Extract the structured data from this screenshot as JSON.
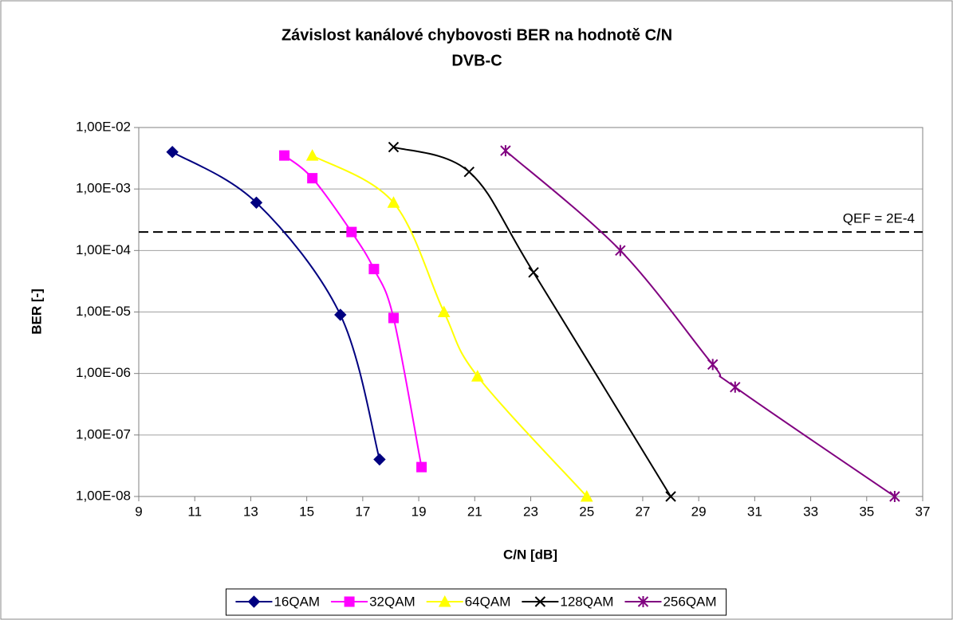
{
  "chart_data": {
    "type": "line",
    "title": "Závislost kanálové chybovosti BER na hodnotě C/N",
    "subtitle": "DVB-C",
    "x_label": "C/N [dB]",
    "y_label": "BER [-]",
    "xlim": [
      9,
      37
    ],
    "xticks": [
      9,
      11,
      13,
      15,
      17,
      19,
      21,
      23,
      25,
      27,
      29,
      31,
      33,
      35,
      37
    ],
    "ylim": [
      1e-08,
      0.01
    ],
    "yticks": [
      {
        "value": 1e-08,
        "label": "1,00E-08"
      },
      {
        "value": 1e-07,
        "label": "1,00E-07"
      },
      {
        "value": 1e-06,
        "label": "1,00E-06"
      },
      {
        "value": 1e-05,
        "label": "1,00E-05"
      },
      {
        "value": 0.0001,
        "label": "1,00E-04"
      },
      {
        "value": 0.001,
        "label": "1,00E-03"
      },
      {
        "value": 0.01,
        "label": "1,00E-02"
      }
    ],
    "log_y": true,
    "grid": true,
    "legend": "bottom",
    "reference_line": {
      "value": 0.0002,
      "label": "QEF = 2E-4"
    },
    "series": [
      {
        "name": "16QAM",
        "color": "#000080",
        "marker": "diamond",
        "x": [
          10.2,
          13.2,
          16.2,
          17.6
        ],
        "values": [
          0.004,
          0.0006,
          9e-06,
          4e-08
        ]
      },
      {
        "name": "32QAM",
        "color": "#ff00ff",
        "marker": "square",
        "x": [
          14.2,
          15.2,
          16.6,
          17.4,
          18.1,
          19.1
        ],
        "values": [
          0.0035,
          0.0015,
          0.0002,
          5e-05,
          8e-06,
          3e-08
        ]
      },
      {
        "name": "64QAM",
        "color": "#ffff00",
        "marker": "triangle",
        "x": [
          15.2,
          18.1,
          19.9,
          21.1,
          25
        ],
        "values": [
          0.0035,
          0.0006,
          1e-05,
          9e-07,
          1e-08
        ]
      },
      {
        "name": "128QAM",
        "color": "#000000",
        "marker": "x",
        "x": [
          18.1,
          20.8,
          23.1,
          28
        ],
        "values": [
          0.0048,
          0.0019,
          4.4e-05,
          1e-08
        ]
      },
      {
        "name": "256QAM",
        "color": "#800080",
        "marker": "star",
        "x": [
          22.1,
          26.2,
          29.5,
          30.3,
          36
        ],
        "values": [
          0.0042,
          0.0001,
          1.4e-06,
          6e-07,
          1e-08
        ]
      }
    ]
  }
}
